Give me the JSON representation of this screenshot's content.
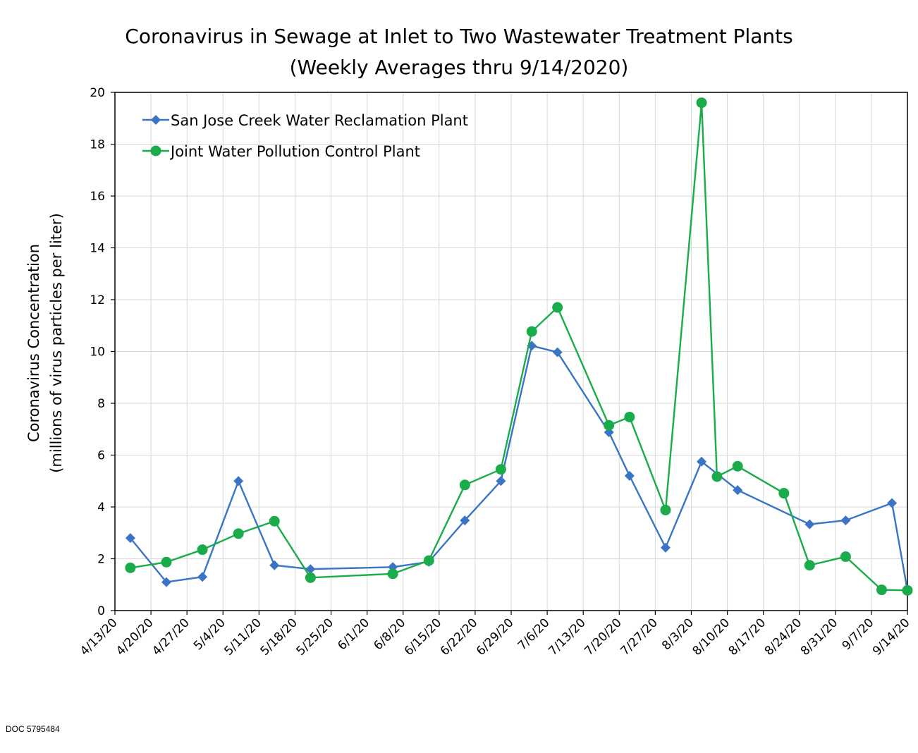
{
  "chart_data": {
    "type": "line",
    "title": "Coronavirus in Sewage at Inlet to Two Wastewater Treatment Plants",
    "subtitle": "(Weekly Averages thru 9/14/2020)",
    "xlabel": "",
    "ylabel": "Coronavirus Concentration",
    "ylabel2": "(millions of virus particles per liter)",
    "ylim": [
      0,
      20
    ],
    "yticks": [
      0,
      2,
      4,
      6,
      8,
      10,
      12,
      14,
      16,
      18,
      20
    ],
    "x_tick_labels": [
      "4/13/20",
      "4/20/20",
      "4/27/20",
      "5/4/20",
      "5/11/20",
      "5/18/20",
      "5/25/20",
      "6/1/20",
      "6/8/20",
      "6/15/20",
      "6/22/20",
      "6/29/20",
      "7/6/20",
      "7/13/20",
      "7/20/20",
      "7/27/20",
      "8/3/20",
      "8/10/20",
      "8/17/20",
      "8/24/20",
      "8/31/20",
      "9/7/20",
      "9/14/20"
    ],
    "x_range": [
      "2020-04-13",
      "2020-09-14"
    ],
    "grid": true,
    "legend_position": "top-left",
    "series": [
      {
        "name": "San Jose Creek Water Reclamation Plant",
        "color": "#3a74c4",
        "marker": "diamond",
        "points": [
          {
            "x": "2020-04-16",
            "y": 2.8
          },
          {
            "x": "2020-04-23",
            "y": 1.1
          },
          {
            "x": "2020-04-30",
            "y": 1.3
          },
          {
            "x": "2020-05-07",
            "y": 5.0
          },
          {
            "x": "2020-05-14",
            "y": 1.75
          },
          {
            "x": "2020-05-21",
            "y": 1.6
          },
          {
            "x": "2020-06-06",
            "y": 1.68
          },
          {
            "x": "2020-06-13",
            "y": 1.88
          },
          {
            "x": "2020-06-20",
            "y": 3.48
          },
          {
            "x": "2020-06-27",
            "y": 5.0
          },
          {
            "x": "2020-07-03",
            "y": 10.22
          },
          {
            "x": "2020-07-08",
            "y": 9.97
          },
          {
            "x": "2020-07-18",
            "y": 6.88
          },
          {
            "x": "2020-07-22",
            "y": 5.2
          },
          {
            "x": "2020-07-29",
            "y": 2.43
          },
          {
            "x": "2020-08-05",
            "y": 5.75
          },
          {
            "x": "2020-08-12",
            "y": 4.65
          },
          {
            "x": "2020-08-26",
            "y": 3.33
          },
          {
            "x": "2020-09-02",
            "y": 3.48
          },
          {
            "x": "2020-09-11",
            "y": 4.15
          },
          {
            "x": "2020-09-14",
            "y": 0.78
          }
        ]
      },
      {
        "name": "Joint Water Pollution Control Plant",
        "color": "#1aac4a",
        "marker": "circle",
        "points": [
          {
            "x": "2020-04-16",
            "y": 1.65
          },
          {
            "x": "2020-04-23",
            "y": 1.87
          },
          {
            "x": "2020-04-30",
            "y": 2.35
          },
          {
            "x": "2020-05-07",
            "y": 2.97
          },
          {
            "x": "2020-05-14",
            "y": 3.45
          },
          {
            "x": "2020-05-21",
            "y": 1.27
          },
          {
            "x": "2020-06-06",
            "y": 1.42
          },
          {
            "x": "2020-06-13",
            "y": 1.93
          },
          {
            "x": "2020-06-20",
            "y": 4.85
          },
          {
            "x": "2020-06-27",
            "y": 5.45
          },
          {
            "x": "2020-07-03",
            "y": 10.77
          },
          {
            "x": "2020-07-08",
            "y": 11.7
          },
          {
            "x": "2020-07-18",
            "y": 7.15
          },
          {
            "x": "2020-07-22",
            "y": 7.47
          },
          {
            "x": "2020-07-29",
            "y": 3.88
          },
          {
            "x": "2020-08-05",
            "y": 19.6
          },
          {
            "x": "2020-08-08",
            "y": 5.17
          },
          {
            "x": "2020-08-12",
            "y": 5.57
          },
          {
            "x": "2020-08-21",
            "y": 4.53
          },
          {
            "x": "2020-08-26",
            "y": 1.75
          },
          {
            "x": "2020-09-02",
            "y": 2.08
          },
          {
            "x": "2020-09-09",
            "y": 0.8
          },
          {
            "x": "2020-09-14",
            "y": 0.78
          }
        ]
      }
    ]
  },
  "footer": {
    "doc_id": "DOC 5795484"
  }
}
